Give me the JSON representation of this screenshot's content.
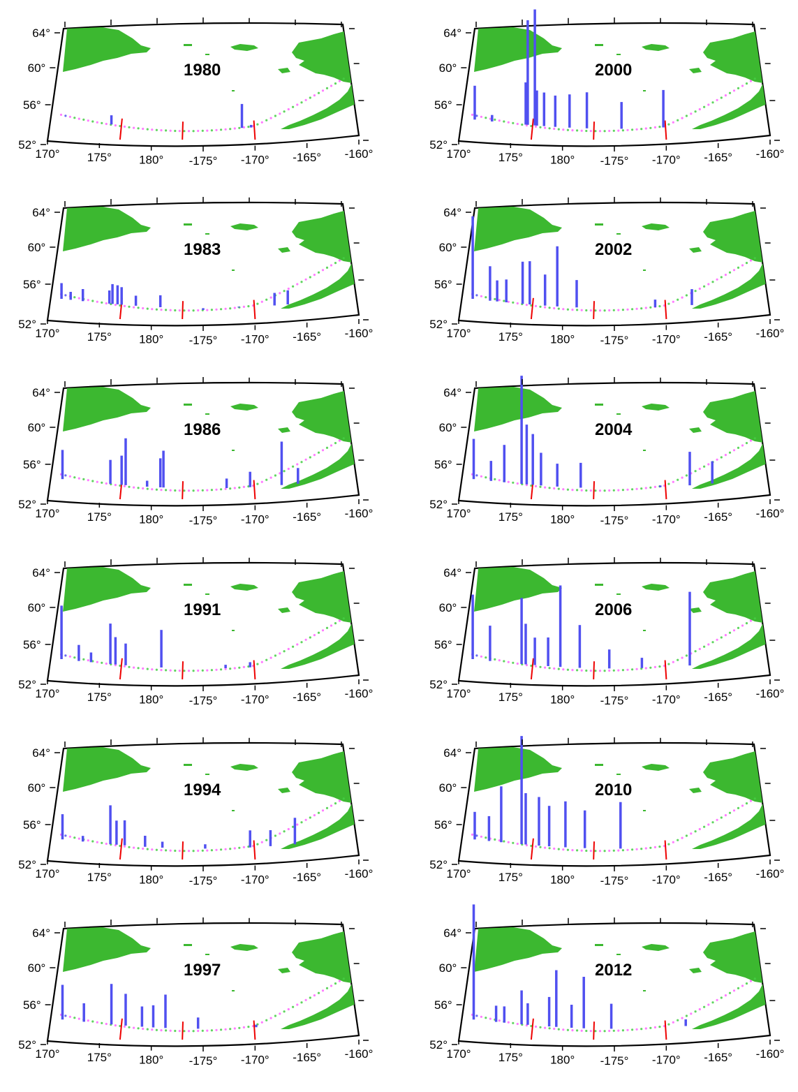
{
  "figure": {
    "description": "Twelve map panels of the Aleutian arc region showing bars by year",
    "latitude_ticks": [
      "64°",
      "60°",
      "56°",
      "52°"
    ],
    "longitude_ticks": [
      "170°",
      "175°",
      "180°",
      "-175°",
      "-170°",
      "-165°",
      "-160°"
    ],
    "colors": {
      "land": "#3cb830",
      "bars": "#5050f0",
      "dots_secondary": "#ff66ff",
      "dots_tertiary": "#44cc44",
      "divider_lines": "#ee0000",
      "frame": "#000000"
    },
    "divider_longitudes": [
      177,
      -177,
      -170
    ]
  },
  "panels": [
    {
      "year": "1980",
      "bars": [
        [
          176.0,
          53.5
        ],
        [
          -171.2,
          55.2
        ],
        [
          -170.3,
          52.7
        ]
      ]
    },
    {
      "year": "1983",
      "bars": [
        [
          171.1,
          54.4
        ],
        [
          172.0,
          53.4
        ],
        [
          173.2,
          53.9
        ],
        [
          175.8,
          54.0
        ],
        [
          176.1,
          54.8
        ],
        [
          176.6,
          54.7
        ],
        [
          177.0,
          54.5
        ],
        [
          178.4,
          53.6
        ],
        [
          180.8,
          53.8
        ],
        [
          -175.0,
          52.2
        ],
        [
          -171.5,
          52.5
        ],
        [
          -168.0,
          53.9
        ],
        [
          -166.7,
          54.1
        ]
      ]
    },
    {
      "year": "1986",
      "bars": [
        [
          171.2,
          56.1
        ],
        [
          175.9,
          55.3
        ],
        [
          177.0,
          55.9
        ],
        [
          177.4,
          58.0
        ],
        [
          179.5,
          53.1
        ],
        [
          180.8,
          55.8
        ],
        [
          181.1,
          56.7
        ],
        [
          -175.0,
          52.4
        ],
        [
          -172.7,
          53.5
        ],
        [
          -170.4,
          54.2
        ],
        [
          -167.3,
          57.6
        ],
        [
          -165.7,
          54.3
        ]
      ]
    },
    {
      "year": "1991",
      "bars": [
        [
          171.1,
          59.2
        ],
        [
          172.8,
          54.4
        ],
        [
          174.0,
          53.6
        ],
        [
          175.9,
          57.3
        ],
        [
          176.4,
          55.7
        ],
        [
          177.4,
          55.0
        ],
        [
          180.9,
          56.8
        ],
        [
          -172.8,
          52.8
        ],
        [
          -170.4,
          53.0
        ]
      ]
    },
    {
      "year": "1994",
      "bars": [
        [
          171.2,
          55.6
        ],
        [
          173.2,
          53.1
        ],
        [
          175.9,
          57.1
        ],
        [
          176.5,
          55.3
        ],
        [
          177.3,
          55.4
        ],
        [
          179.3,
          53.7
        ],
        [
          181.0,
          53.1
        ],
        [
          -174.8,
          52.9
        ],
        [
          -170.4,
          54.4
        ],
        [
          -168.4,
          54.3
        ],
        [
          -166.0,
          55.6
        ]
      ]
    },
    {
      "year": "1997",
      "bars": [
        [
          171.2,
          56.8
        ],
        [
          173.3,
          54.7
        ],
        [
          176.0,
          57.3
        ],
        [
          177.4,
          56.2
        ],
        [
          179.0,
          54.8
        ],
        [
          180.1,
          55.0
        ],
        [
          181.3,
          56.3
        ],
        [
          -175.5,
          53.7
        ],
        [
          -172.8,
          52.4
        ],
        [
          -169.8,
          52.7
        ]
      ]
    },
    {
      "year": "2000",
      "bars": [
        [
          171.3,
          56.7
        ],
        [
          173.0,
          53.2
        ],
        [
          176.3,
          57.5
        ],
        [
          176.5,
          65.0
        ],
        [
          177.2,
          66.3
        ],
        [
          177.4,
          56.6
        ],
        [
          178.1,
          56.4
        ],
        [
          179.2,
          56.1
        ],
        [
          180.6,
          56.3
        ],
        [
          182.3,
          56.6
        ],
        [
          -174.3,
          55.5
        ],
        [
          -170.2,
          56.8
        ]
      ]
    },
    {
      "year": "2002",
      "bars": [
        [
          171.1,
          62.9
        ],
        [
          172.8,
          56.7
        ],
        [
          173.5,
          55.0
        ],
        [
          174.4,
          55.2
        ],
        [
          176.0,
          57.5
        ],
        [
          176.7,
          57.6
        ],
        [
          178.2,
          56.1
        ],
        [
          179.4,
          59.5
        ],
        [
          181.3,
          55.6
        ],
        [
          -171.0,
          53.3
        ],
        [
          -167.4,
          54.3
        ]
      ]
    },
    {
      "year": "2004",
      "bars": [
        [
          171.2,
          57.5
        ],
        [
          172.9,
          54.9
        ],
        [
          174.2,
          57.0
        ],
        [
          175.9,
          65.5
        ],
        [
          176.4,
          59.6
        ],
        [
          177.0,
          58.5
        ],
        [
          177.8,
          56.3
        ],
        [
          179.4,
          55.1
        ],
        [
          181.7,
          55.3
        ],
        [
          -170.5,
          52.6
        ],
        [
          -167.6,
          56.4
        ],
        [
          -165.4,
          55.1
        ]
      ]
    },
    {
      "year": "2006",
      "bars": [
        [
          171.1,
          60.6
        ],
        [
          172.8,
          56.8
        ],
        [
          175.9,
          60.4
        ],
        [
          176.3,
          57.3
        ],
        [
          177.2,
          55.7
        ],
        [
          178.5,
          55.8
        ],
        [
          179.7,
          62.0
        ],
        [
          181.6,
          57.4
        ],
        [
          -175.5,
          54.6
        ],
        [
          -172.3,
          53.6
        ],
        [
          -167.6,
          61.2
        ]
      ]
    },
    {
      "year": "2010",
      "bars": [
        [
          171.3,
          55.9
        ],
        [
          172.7,
          55.5
        ],
        [
          173.9,
          59.3
        ],
        [
          175.9,
          65.5
        ],
        [
          176.3,
          58.6
        ],
        [
          177.6,
          58.2
        ],
        [
          178.6,
          57.2
        ],
        [
          180.2,
          57.8
        ],
        [
          182.1,
          56.8
        ],
        [
          -174.4,
          57.8
        ]
      ]
    },
    {
      "year": "2012",
      "bars": [
        [
          171.2,
          67.0
        ],
        [
          173.4,
          54.4
        ],
        [
          174.2,
          54.4
        ],
        [
          175.9,
          56.5
        ],
        [
          176.5,
          55.0
        ],
        [
          178.6,
          55.9
        ],
        [
          179.3,
          59.1
        ],
        [
          180.8,
          55.1
        ],
        [
          182.0,
          58.4
        ],
        [
          -175.3,
          55.3
        ],
        [
          -168.0,
          53.2
        ]
      ]
    }
  ]
}
